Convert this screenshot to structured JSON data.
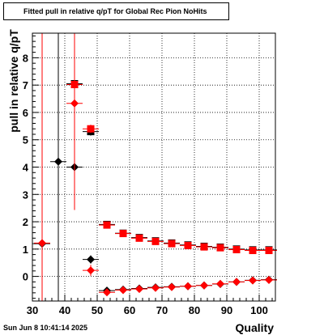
{
  "chart_data": {
    "type": "scatter",
    "title": "Fitted pull in relative q/pT for Global Rec Pion NoHits",
    "xlabel": "Quality",
    "ylabel": "pull in relative q/pT",
    "xlim": [
      30,
      105
    ],
    "ylim": [
      -0.9,
      8.9
    ],
    "xticks": [
      30,
      40,
      50,
      60,
      70,
      80,
      90,
      100
    ],
    "yticks": [
      0,
      1,
      2,
      3,
      4,
      5,
      6,
      7,
      8
    ],
    "grid": true,
    "series": [
      {
        "marker": "square",
        "color": "#000000",
        "points": [
          {
            "x": 43,
            "y": 7.05,
            "yerr": 0.1
          },
          {
            "x": 48,
            "y": 5.3,
            "yerr": 0.15
          },
          {
            "x": 53,
            "y": 1.9,
            "yerr": 0.06
          },
          {
            "x": 58,
            "y": 1.58,
            "yerr": 0.05
          },
          {
            "x": 63,
            "y": 1.42,
            "yerr": 0.05
          },
          {
            "x": 68,
            "y": 1.3,
            "yerr": 0.05
          },
          {
            "x": 73,
            "y": 1.22,
            "yerr": 0.05
          },
          {
            "x": 78,
            "y": 1.15,
            "yerr": 0.05
          },
          {
            "x": 83,
            "y": 1.1,
            "yerr": 0.05
          },
          {
            "x": 88,
            "y": 1.07,
            "yerr": 0.05
          },
          {
            "x": 93,
            "y": 1.0,
            "yerr": 0.05
          },
          {
            "x": 98,
            "y": 0.97,
            "yerr": 0.05
          },
          {
            "x": 103,
            "y": 0.97,
            "yerr": 0.05
          }
        ]
      },
      {
        "marker": "square",
        "color": "#ff0000",
        "points": [
          {
            "x": 43,
            "y": 7.02,
            "yerr": 0.1
          },
          {
            "x": 48,
            "y": 5.4,
            "yerr": 0.15
          },
          {
            "x": 53,
            "y": 1.88,
            "yerr": 0.06
          },
          {
            "x": 58,
            "y": 1.57,
            "yerr": 0.05
          },
          {
            "x": 63,
            "y": 1.4,
            "yerr": 0.05
          },
          {
            "x": 68,
            "y": 1.28,
            "yerr": 0.05
          },
          {
            "x": 73,
            "y": 1.2,
            "yerr": 0.05
          },
          {
            "x": 78,
            "y": 1.13,
            "yerr": 0.05
          },
          {
            "x": 83,
            "y": 1.08,
            "yerr": 0.05
          },
          {
            "x": 88,
            "y": 1.05,
            "yerr": 0.05
          },
          {
            "x": 93,
            "y": 0.98,
            "yerr": 0.05
          },
          {
            "x": 98,
            "y": 0.95,
            "yerr": 0.05
          },
          {
            "x": 103,
            "y": 0.95,
            "yerr": 0.05
          }
        ]
      },
      {
        "marker": "diamond",
        "color": "#000000",
        "points": [
          {
            "x": 33,
            "y": 1.2,
            "yerr": 10.0
          },
          {
            "x": 38,
            "y": 4.2,
            "yerr": 10.0
          },
          {
            "x": 43,
            "y": 4.0,
            "yerr": 0.2
          },
          {
            "x": 48,
            "y": 0.62,
            "yerr": 0.15
          },
          {
            "x": 53,
            "y": -0.52,
            "yerr": 0.04
          },
          {
            "x": 58,
            "y": -0.48,
            "yerr": 0.04
          },
          {
            "x": 63,
            "y": -0.44,
            "yerr": 0.04
          },
          {
            "x": 68,
            "y": -0.4,
            "yerr": 0.04
          },
          {
            "x": 73,
            "y": -0.38,
            "yerr": 0.04
          },
          {
            "x": 78,
            "y": -0.36,
            "yerr": 0.04
          },
          {
            "x": 83,
            "y": -0.33,
            "yerr": 0.04
          },
          {
            "x": 88,
            "y": -0.28,
            "yerr": 0.04
          },
          {
            "x": 93,
            "y": -0.2,
            "yerr": 0.04
          },
          {
            "x": 98,
            "y": -0.14,
            "yerr": 0.04
          },
          {
            "x": 103,
            "y": -0.12,
            "yerr": 0.04
          }
        ]
      },
      {
        "marker": "diamond",
        "color": "#ff0000",
        "points": [
          {
            "x": 33,
            "y": 1.22,
            "yerr": 10.0
          },
          {
            "x": 43,
            "y": 6.33,
            "yerr": 3.9
          },
          {
            "x": 48,
            "y": 0.22,
            "yerr": 0.2
          },
          {
            "x": 53,
            "y": -0.58,
            "yerr": 0.04
          },
          {
            "x": 58,
            "y": -0.5,
            "yerr": 0.04
          },
          {
            "x": 63,
            "y": -0.46,
            "yerr": 0.04
          },
          {
            "x": 68,
            "y": -0.42,
            "yerr": 0.04
          },
          {
            "x": 73,
            "y": -0.39,
            "yerr": 0.04
          },
          {
            "x": 78,
            "y": -0.36,
            "yerr": 0.04
          },
          {
            "x": 83,
            "y": -0.33,
            "yerr": 0.04
          },
          {
            "x": 88,
            "y": -0.27,
            "yerr": 0.04
          },
          {
            "x": 93,
            "y": -0.2,
            "yerr": 0.04
          },
          {
            "x": 98,
            "y": -0.15,
            "yerr": 0.04
          },
          {
            "x": 103,
            "y": -0.13,
            "yerr": 0.04
          }
        ]
      }
    ]
  },
  "footer": {
    "timestamp": "Sun Jun  8 10:41:14 2025"
  }
}
